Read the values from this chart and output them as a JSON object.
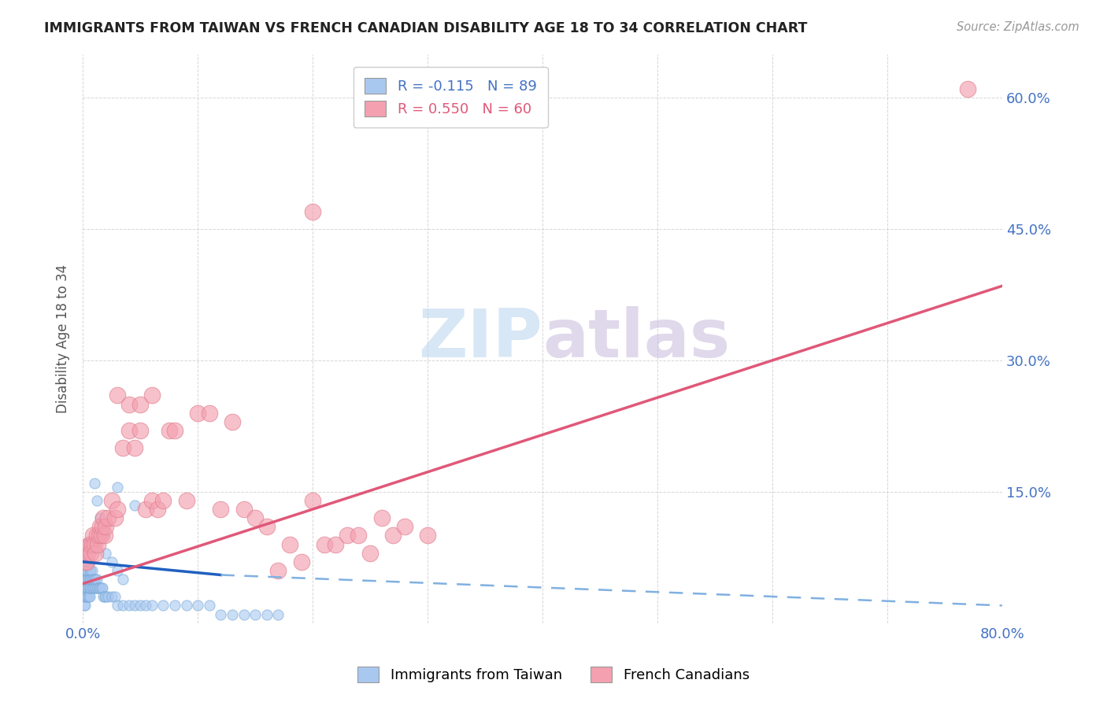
{
  "title": "IMMIGRANTS FROM TAIWAN VS FRENCH CANADIAN DISABILITY AGE 18 TO 34 CORRELATION CHART",
  "source": "Source: ZipAtlas.com",
  "ylabel": "Disability Age 18 to 34",
  "xlim": [
    0.0,
    0.8
  ],
  "ylim": [
    0.0,
    0.65
  ],
  "blue_R": -0.115,
  "blue_N": 89,
  "pink_R": 0.55,
  "pink_N": 60,
  "blue_color": "#a8c8f0",
  "pink_color": "#f4a0b0",
  "blue_line_solid_color": "#2060c0",
  "blue_line_dash_color": "#80b0e0",
  "pink_line_color": "#e05878",
  "watermark_zip": "#c8ddf0",
  "watermark_atlas": "#d8c8e8",
  "legend_label_blue": "Immigrants from Taiwan",
  "legend_label_pink": "French Canadians",
  "blue_x": [
    0.001,
    0.001,
    0.001,
    0.001,
    0.001,
    0.001,
    0.001,
    0.001,
    0.001,
    0.002,
    0.002,
    0.002,
    0.002,
    0.002,
    0.002,
    0.002,
    0.002,
    0.003,
    0.003,
    0.003,
    0.003,
    0.003,
    0.003,
    0.004,
    0.004,
    0.004,
    0.004,
    0.004,
    0.005,
    0.005,
    0.005,
    0.005,
    0.006,
    0.006,
    0.006,
    0.006,
    0.007,
    0.007,
    0.007,
    0.008,
    0.008,
    0.008,
    0.009,
    0.009,
    0.01,
    0.01,
    0.011,
    0.011,
    0.012,
    0.012,
    0.013,
    0.014,
    0.015,
    0.016,
    0.017,
    0.018,
    0.019,
    0.02,
    0.022,
    0.025,
    0.028,
    0.03,
    0.035,
    0.04,
    0.045,
    0.05,
    0.055,
    0.06,
    0.07,
    0.08,
    0.09,
    0.1,
    0.11,
    0.12,
    0.13,
    0.14,
    0.15,
    0.16,
    0.17,
    0.03,
    0.045,
    0.01,
    0.012,
    0.015,
    0.018,
    0.02,
    0.025,
    0.03,
    0.035
  ],
  "blue_y": [
    0.02,
    0.03,
    0.03,
    0.04,
    0.04,
    0.05,
    0.05,
    0.06,
    0.07,
    0.02,
    0.03,
    0.04,
    0.05,
    0.06,
    0.07,
    0.08,
    0.09,
    0.03,
    0.04,
    0.05,
    0.06,
    0.07,
    0.08,
    0.03,
    0.04,
    0.05,
    0.06,
    0.07,
    0.03,
    0.04,
    0.05,
    0.07,
    0.03,
    0.04,
    0.05,
    0.06,
    0.04,
    0.05,
    0.06,
    0.04,
    0.05,
    0.06,
    0.04,
    0.05,
    0.04,
    0.05,
    0.04,
    0.05,
    0.04,
    0.05,
    0.04,
    0.04,
    0.04,
    0.04,
    0.04,
    0.03,
    0.03,
    0.03,
    0.03,
    0.03,
    0.03,
    0.02,
    0.02,
    0.02,
    0.02,
    0.02,
    0.02,
    0.02,
    0.02,
    0.02,
    0.02,
    0.02,
    0.02,
    0.01,
    0.01,
    0.01,
    0.01,
    0.01,
    0.01,
    0.155,
    0.135,
    0.16,
    0.14,
    0.12,
    0.1,
    0.08,
    0.07,
    0.06,
    0.05
  ],
  "pink_x": [
    0.002,
    0.003,
    0.004,
    0.005,
    0.006,
    0.007,
    0.008,
    0.009,
    0.01,
    0.011,
    0.012,
    0.013,
    0.014,
    0.015,
    0.016,
    0.017,
    0.018,
    0.019,
    0.02,
    0.022,
    0.025,
    0.028,
    0.03,
    0.035,
    0.04,
    0.045,
    0.05,
    0.055,
    0.06,
    0.065,
    0.07,
    0.075,
    0.08,
    0.09,
    0.1,
    0.11,
    0.12,
    0.13,
    0.14,
    0.15,
    0.16,
    0.17,
    0.18,
    0.19,
    0.2,
    0.21,
    0.22,
    0.23,
    0.24,
    0.25,
    0.26,
    0.27,
    0.28,
    0.3,
    0.03,
    0.04,
    0.05,
    0.06,
    0.77,
    0.2
  ],
  "pink_y": [
    0.07,
    0.07,
    0.08,
    0.09,
    0.09,
    0.08,
    0.09,
    0.1,
    0.09,
    0.08,
    0.1,
    0.09,
    0.1,
    0.11,
    0.1,
    0.11,
    0.12,
    0.1,
    0.11,
    0.12,
    0.14,
    0.12,
    0.13,
    0.2,
    0.22,
    0.2,
    0.22,
    0.13,
    0.14,
    0.13,
    0.14,
    0.22,
    0.22,
    0.14,
    0.24,
    0.24,
    0.13,
    0.23,
    0.13,
    0.12,
    0.11,
    0.06,
    0.09,
    0.07,
    0.14,
    0.09,
    0.09,
    0.1,
    0.1,
    0.08,
    0.12,
    0.1,
    0.11,
    0.1,
    0.26,
    0.25,
    0.25,
    0.26,
    0.61,
    0.47
  ],
  "blue_line_x0": 0.0,
  "blue_line_y0": 0.07,
  "blue_line_x_solid_end": 0.12,
  "blue_line_y_solid_end": 0.055,
  "blue_line_x_dash_end": 0.8,
  "blue_line_y_dash_end": 0.02,
  "pink_line_x0": 0.0,
  "pink_line_y0": 0.045,
  "pink_line_x1": 0.8,
  "pink_line_y1": 0.385
}
